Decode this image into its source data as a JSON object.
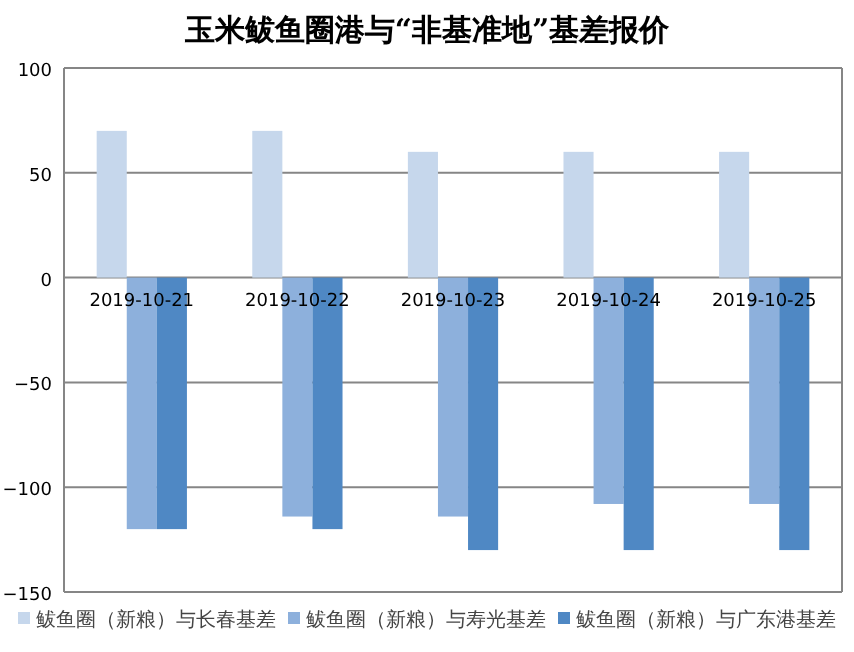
{
  "chart_data": {
    "type": "bar",
    "title": "玉米鲅鱼圈港与“非基准地”基差报价",
    "categories": [
      "2019-10-21",
      "2019-10-22",
      "2019-10-23",
      "2019-10-24",
      "2019-10-25"
    ],
    "series": [
      {
        "name": "鲅鱼圈（新粮）与长春基差",
        "color": "#c6d7ec",
        "values": [
          70,
          70,
          60,
          60,
          60
        ]
      },
      {
        "name": "鲅鱼圈（新粮）与寿光基差",
        "color": "#8db0dc",
        "values": [
          -120,
          -114,
          -114,
          -108,
          -108
        ]
      },
      {
        "name": "鲅鱼圈（新粮）与广东港基差",
        "color": "#4f88c4",
        "values": [
          -120,
          -120,
          -130,
          -130,
          -130
        ]
      }
    ],
    "ylim": [
      -150,
      100
    ],
    "yticks": [
      -150,
      -100,
      -50,
      0,
      50,
      100
    ],
    "grid": "y",
    "legend": "bottom"
  }
}
